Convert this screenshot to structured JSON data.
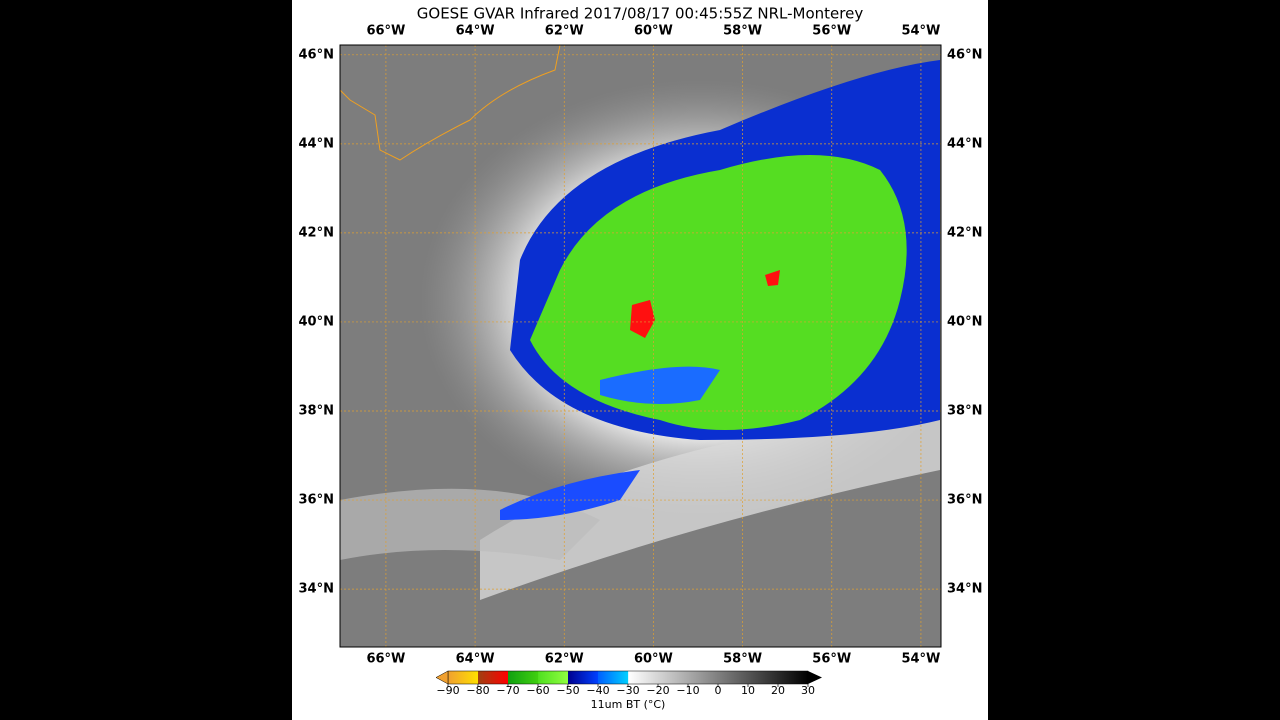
{
  "map": {
    "title": "GOESE GVAR Infrared 2017/08/17 00:45:55Z NRL-Monterey",
    "xlim": [
      -67.03,
      -53.55
    ],
    "ylim": [
      32.7,
      46.22
    ],
    "xticks": [
      {
        "value": -66,
        "label": "66°W"
      },
      {
        "value": -64,
        "label": "64°W"
      },
      {
        "value": -62,
        "label": "62°W"
      },
      {
        "value": -60,
        "label": "60°W"
      },
      {
        "value": -58,
        "label": "58°W"
      },
      {
        "value": -56,
        "label": "56°W"
      },
      {
        "value": -54,
        "label": "54°W"
      }
    ],
    "yticks": [
      {
        "value": 34,
        "label": "34°N"
      },
      {
        "value": 36,
        "label": "36°N"
      },
      {
        "value": 38,
        "label": "38°N"
      },
      {
        "value": 40,
        "label": "40°N"
      },
      {
        "value": 42,
        "label": "42°N"
      },
      {
        "value": 44,
        "label": "44°N"
      },
      {
        "value": 46,
        "label": "46°N"
      }
    ],
    "colorbar": {
      "label": "11um BT (°C)",
      "range": [
        -90,
        30
      ],
      "ticks": [
        {
          "value": -90,
          "label": "−90"
        },
        {
          "value": -80,
          "label": "−80"
        },
        {
          "value": -70,
          "label": "−70"
        },
        {
          "value": -60,
          "label": "−60"
        },
        {
          "value": -50,
          "label": "−50"
        },
        {
          "value": -40,
          "label": "−40"
        },
        {
          "value": -30,
          "label": "−30"
        },
        {
          "value": -20,
          "label": "−20"
        },
        {
          "value": -10,
          "label": "−10"
        },
        0,
        10,
        20,
        30
      ]
    }
  }
}
